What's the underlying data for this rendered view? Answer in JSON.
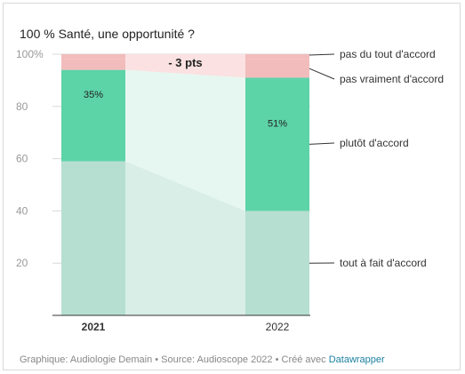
{
  "chart_data": {
    "type": "bar",
    "stacked": true,
    "title": "100 % Santé, une opportunité ?",
    "categories": [
      "2021",
      "2022"
    ],
    "ylim": [
      0,
      100
    ],
    "yticks": [
      20,
      40,
      60,
      80,
      100
    ],
    "ytick_labels": [
      "20",
      "40",
      "60",
      "80",
      "100%"
    ],
    "grid": true,
    "series": [
      {
        "name": "tout à fait d'accord",
        "values": [
          59,
          40
        ],
        "color": "#b6dfd1"
      },
      {
        "name": "plutôt d'accord",
        "values": [
          35,
          51
        ],
        "color": "#5dd3a8"
      },
      {
        "name": "pas vraiment d'accord",
        "values": [
          4,
          7
        ],
        "color": "#f2bcbc"
      },
      {
        "name": "pas du tout d'accord",
        "values": [
          2,
          2
        ],
        "color": "#f2bcbc"
      }
    ],
    "data_labels": [
      {
        "series": "plutôt d'accord",
        "category": "2021",
        "text": "35%"
      },
      {
        "series": "plutôt d'accord",
        "category": "2022",
        "text": "51%"
      }
    ],
    "annotations": [
      {
        "text": "- 3 pts"
      }
    ],
    "legend_placement": "right"
  },
  "footer": {
    "text": "Graphique: Audiologie Demain • Source: Audioscope 2022 • Créé avec ",
    "link": "Datawrapper"
  }
}
